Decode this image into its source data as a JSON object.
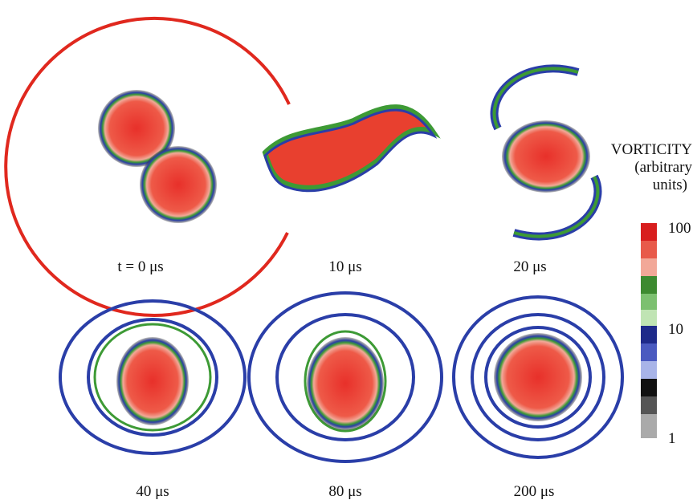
{
  "panels": [
    {
      "label": "t = 0 μs"
    },
    {
      "label": "10 μs"
    },
    {
      "label": "20 μs"
    },
    {
      "label": "40 μs"
    },
    {
      "label": "80 μs"
    },
    {
      "label": "200 μs"
    }
  ],
  "colorbar": {
    "title": [
      "VORTICITY",
      "(arbitrary",
      "units)"
    ],
    "labels": [
      "100",
      "10",
      "1"
    ]
  }
}
